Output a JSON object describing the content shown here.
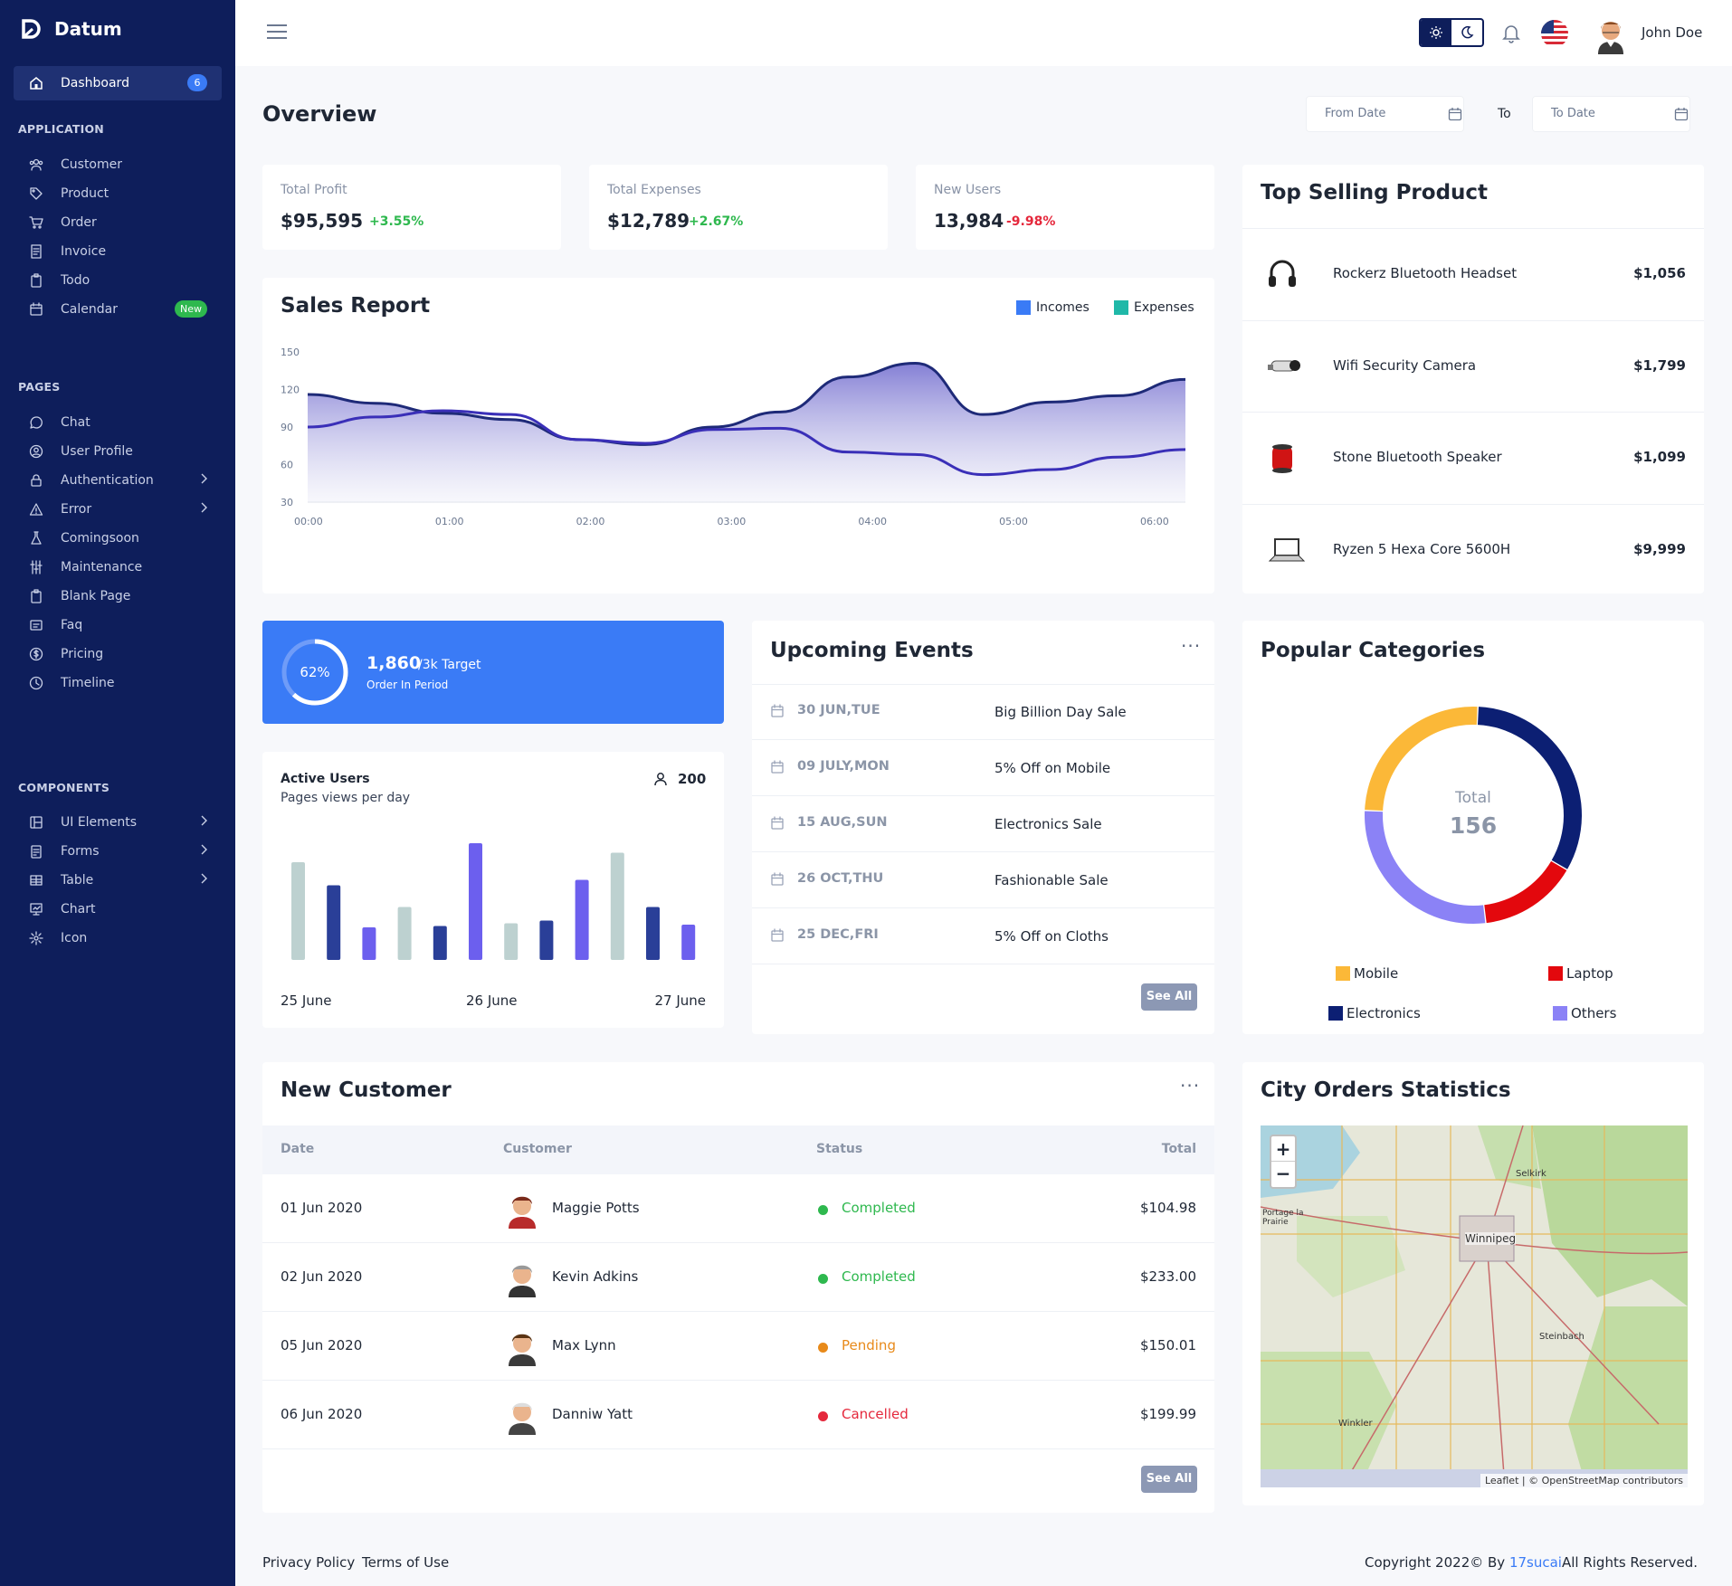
{
  "brand": "Datum",
  "sidebar": {
    "dashboard": {
      "label": "Dashboard",
      "badge": "6"
    },
    "sections": {
      "application": "APPLICATION",
      "pages": "PAGES",
      "components": "COMPONENTS"
    },
    "application": [
      {
        "label": "Customer",
        "icon": "users-icon"
      },
      {
        "label": "Product",
        "icon": "tag-icon"
      },
      {
        "label": "Order",
        "icon": "cart-icon"
      },
      {
        "label": "Invoice",
        "icon": "invoice-icon"
      },
      {
        "label": "Todo",
        "icon": "clipboard-icon"
      },
      {
        "label": "Calendar",
        "icon": "calendar-icon",
        "badge": "New"
      }
    ],
    "pages": [
      {
        "label": "Chat",
        "icon": "chat-icon"
      },
      {
        "label": "User Profile",
        "icon": "user-circle-icon"
      },
      {
        "label": "Authentication",
        "icon": "lock-icon",
        "chevron": true
      },
      {
        "label": "Error",
        "icon": "warning-icon",
        "chevron": true
      },
      {
        "label": "Comingsoon",
        "icon": "flask-icon"
      },
      {
        "label": "Maintenance",
        "icon": "sliders-icon"
      },
      {
        "label": "Blank Page",
        "icon": "clipboard-icon"
      },
      {
        "label": "Faq",
        "icon": "faq-icon"
      },
      {
        "label": "Pricing",
        "icon": "dollar-icon"
      },
      {
        "label": "Timeline",
        "icon": "clock-icon"
      }
    ],
    "components": [
      {
        "label": "UI Elements",
        "icon": "ui-icon",
        "chevron": true
      },
      {
        "label": "Forms",
        "icon": "form-icon",
        "chevron": true
      },
      {
        "label": "Table",
        "icon": "table-icon",
        "chevron": true
      },
      {
        "label": "Chart",
        "icon": "chart-icon"
      },
      {
        "label": "Icon",
        "icon": "icon-icon"
      }
    ]
  },
  "topbar": {
    "user_name": "John Doe"
  },
  "overview": {
    "title": "Overview",
    "from_placeholder": "From Date",
    "to_label": "To",
    "to_placeholder": "To Date"
  },
  "stats": [
    {
      "label": "Total Profit",
      "value": "$95,595",
      "change": "+3.55%",
      "color": "#2eb84e"
    },
    {
      "label": "Total Expenses",
      "value": "$12,789",
      "change": "+2.67%",
      "color": "#2eb84e"
    },
    {
      "label": "New Users",
      "value": "13,984",
      "change": "-9.98%",
      "color": "#e5283c"
    }
  ],
  "sales": {
    "title": "Sales Report",
    "legend": [
      {
        "name": "Incomes",
        "color": "#3a7bf6"
      },
      {
        "name": "Expenses",
        "color": "#1fb8a8"
      }
    ]
  },
  "chart_data": [
    {
      "type": "area",
      "title": "Sales Report",
      "categories": [
        "00:00",
        "01:00",
        "02:00",
        "03:00",
        "04:00",
        "05:00",
        "06:00"
      ],
      "ylim": [
        30,
        150
      ],
      "yticks": [
        30,
        60,
        90,
        120,
        150
      ],
      "series": [
        {
          "name": "Incomes",
          "x": [
            "00:00",
            "00:30",
            "01:00",
            "01:30",
            "02:00",
            "02:30",
            "03:00",
            "03:30",
            "04:00",
            "04:30",
            "05:00",
            "05:30",
            "06:00",
            "06:30"
          ],
          "values": [
            116,
            109,
            101,
            96,
            80,
            76,
            90,
            102,
            130,
            141,
            100,
            110,
            115,
            128
          ]
        },
        {
          "name": "Expenses",
          "x": [
            "00:00",
            "00:30",
            "01:00",
            "01:30",
            "02:00",
            "02:30",
            "03:00",
            "03:30",
            "04:00",
            "04:30",
            "05:00",
            "05:30",
            "06:00",
            "06:30"
          ],
          "values": [
            90,
            98,
            103,
            100,
            80,
            77,
            88,
            89,
            70,
            68,
            52,
            56,
            66,
            72
          ]
        }
      ]
    },
    {
      "type": "bar",
      "title": "Active Users",
      "series": [
        {
          "name": "Pages views per day",
          "values": [
            72,
            55,
            24,
            39,
            25,
            86,
            27,
            29,
            59,
            79,
            39,
            26
          ]
        }
      ],
      "xlabels": [
        "25 June",
        "26 June",
        "27 June"
      ]
    },
    {
      "type": "pie",
      "title": "Popular Categories",
      "center_label": "Total",
      "center_value": 156,
      "slices": [
        {
          "name": "Mobile",
          "value": 39
        },
        {
          "name": "Electronics",
          "value": 51
        },
        {
          "name": "Laptop",
          "value": 23
        },
        {
          "name": "Others",
          "value": 43
        }
      ]
    }
  ],
  "target": {
    "percent": "62%",
    "value": "1,860",
    "target": "/3k Target",
    "sub": "Order In Period",
    "progress": 0.62
  },
  "active_users": {
    "title": "Active Users",
    "sub": "Pages views per day",
    "count": "200"
  },
  "events": {
    "title": "Upcoming Events",
    "see_all": "See All",
    "items": [
      {
        "date": "30 JUN,TUE",
        "name": "Big Billion Day Sale"
      },
      {
        "date": "09 JULY,MON",
        "name": "5% Off on Mobile"
      },
      {
        "date": "15 AUG,SUN",
        "name": "Electronics Sale"
      },
      {
        "date": "26 OCT,THU",
        "name": "Fashionable Sale"
      },
      {
        "date": "25 DEC,FRI",
        "name": "5% Off on Cloths"
      }
    ]
  },
  "top_selling": {
    "title": "Top Selling Product",
    "items": [
      {
        "name": "Rockerz Bluetooth Headset",
        "price": "$1,056"
      },
      {
        "name": "Wifi Security Camera",
        "price": "$1,799"
      },
      {
        "name": "Stone Bluetooth Speaker",
        "price": "$1,099"
      },
      {
        "name": "Ryzen 5 Hexa Core 5600H",
        "price": "$9,999"
      }
    ]
  },
  "categories": {
    "title": "Popular Categories",
    "total_label": "Total",
    "total": "156",
    "legend": [
      {
        "name": "Mobile",
        "color": "#fbb838"
      },
      {
        "name": "Laptop",
        "color": "#e3080d"
      },
      {
        "name": "Electronics",
        "color": "#0c1f73"
      },
      {
        "name": "Others",
        "color": "#8b82f6"
      }
    ]
  },
  "customers": {
    "title": "New Customer",
    "see_all": "See All",
    "headers": [
      "Date",
      "Customer",
      "Status",
      "Total"
    ],
    "rows": [
      {
        "date": "01 Jun 2020",
        "name": "Maggie Potts",
        "status": "Completed",
        "status_color": "#2eb84e",
        "total": "$104.98"
      },
      {
        "date": "02 Jun 2020",
        "name": "Kevin Adkins",
        "status": "Completed",
        "status_color": "#2eb84e",
        "total": "$233.00"
      },
      {
        "date": "05 Jun 2020",
        "name": "Max Lynn",
        "status": "Pending",
        "status_color": "#e88a1a",
        "total": "$150.01"
      },
      {
        "date": "06 Jun 2020",
        "name": "Danniw Yatt",
        "status": "Cancelled",
        "status_color": "#e5283c",
        "total": "$199.99"
      }
    ]
  },
  "city": {
    "title": "City Orders Statistics",
    "labels": [
      "Selkirk",
      "Portage la Prairie",
      "Winnipeg",
      "Steinbach",
      "Winkler"
    ],
    "attribution": "Leaflet | © OpenStreetMap contributors"
  },
  "footer": {
    "privacy": "Privacy Policy",
    "terms": "Terms of Use",
    "copyright": "Copyright 2022© By ",
    "company": "17sucai",
    "rights": "All Rights Reserved."
  }
}
